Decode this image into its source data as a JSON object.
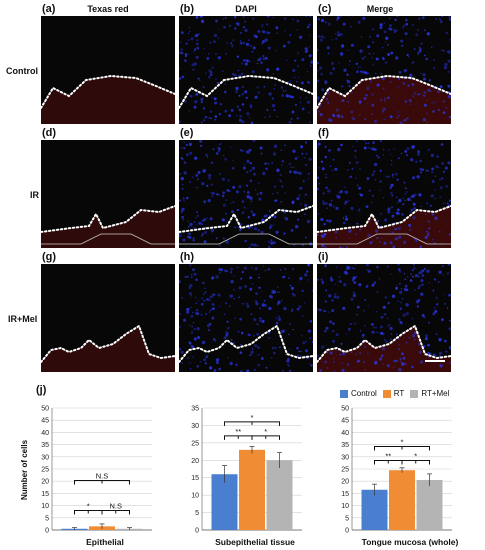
{
  "figure": {
    "panel_letters": [
      "(a)",
      "(b)",
      "(c)",
      "(d)",
      "(e)",
      "(f)",
      "(g)",
      "(h)",
      "(i)",
      "(j)"
    ],
    "column_titles": [
      "Texas red",
      "DAPI",
      "Merge"
    ],
    "row_labels": [
      "Control",
      "IR",
      "IR+Mel"
    ],
    "colors": {
      "control": "#4a7fd0",
      "rt": "#ef8c34",
      "rtmel": "#b4b4b4",
      "dapi": "#2a36e6",
      "texas_red": "#7a1010",
      "dotline": "#ffffff"
    }
  },
  "legend": {
    "items": [
      "Control",
      "RT",
      "RT+Mel"
    ]
  },
  "chart_data": [
    {
      "type": "bar",
      "title": "Epithelial",
      "ylabel": "Number of cells",
      "categories": [
        "Control",
        "RT",
        "RT+Mel"
      ],
      "values": [
        0.5,
        1.5,
        0.5
      ],
      "errors": [
        0.5,
        1.0,
        0.5
      ],
      "ylim": [
        0,
        50
      ],
      "yticks": [
        "0",
        "5",
        "10",
        "15",
        "20",
        "25",
        "30",
        "35",
        "40",
        "45",
        "50"
      ],
      "grid": true,
      "annotations": [
        {
          "pair": [
            0,
            2
          ],
          "label": "N.S",
          "level": 1
        },
        {
          "pair": [
            0,
            1
          ],
          "label": "*",
          "level": 0
        },
        {
          "pair": [
            1,
            2
          ],
          "label": "N.S",
          "level": 0
        }
      ]
    },
    {
      "type": "bar",
      "title": "Subepithelial tissue",
      "categories": [
        "Control",
        "RT",
        "RT+Mel"
      ],
      "values": [
        16,
        23,
        20
      ],
      "errors": [
        2.5,
        1.0,
        2.2
      ],
      "ylim": [
        0,
        35
      ],
      "yticks": [
        "0",
        "5",
        "10",
        "15",
        "20",
        "25",
        "30",
        "35"
      ],
      "grid": true,
      "annotations": [
        {
          "pair": [
            0,
            2
          ],
          "label": "*",
          "level": 1
        },
        {
          "pair": [
            0,
            1
          ],
          "label": "**",
          "level": 0
        },
        {
          "pair": [
            1,
            2
          ],
          "label": "*",
          "level": 0
        }
      ]
    },
    {
      "type": "bar",
      "title": "Tongue mucosa (whole)",
      "categories": [
        "Control",
        "RT",
        "RT+Mel"
      ],
      "values": [
        16.5,
        24.5,
        20.5
      ],
      "errors": [
        2.3,
        1.0,
        2.5
      ],
      "ylim": [
        0,
        50
      ],
      "yticks": [
        "0",
        "5",
        "10",
        "15",
        "20",
        "25",
        "30",
        "35",
        "40",
        "45",
        "50"
      ],
      "grid": true,
      "annotations": [
        {
          "pair": [
            0,
            2
          ],
          "label": "*",
          "level": 1
        },
        {
          "pair": [
            0,
            1
          ],
          "label": "**",
          "level": 0
        },
        {
          "pair": [
            1,
            2
          ],
          "label": "*",
          "level": 0
        }
      ]
    }
  ]
}
